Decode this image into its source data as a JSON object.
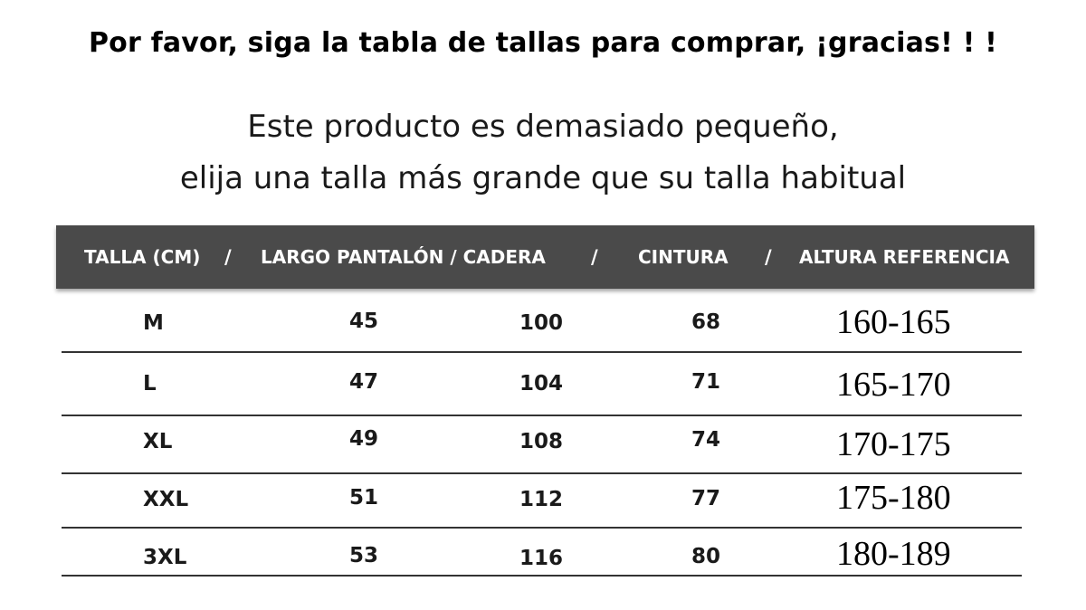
{
  "notice": {
    "headline": "Por favor, siga la tabla de tallas para comprar, ¡gracias! ! !",
    "subline_1": "Este producto es demasiado pequeño,",
    "subline_2": "elija una talla más grande que su talla habitual"
  },
  "table": {
    "headers": {
      "size": "TALLA (CM)",
      "length_hip": "LARGO PANTALÓN / CADERA",
      "waist": "CINTURA",
      "height": "ALTURA REFERENCIA",
      "separator": "/"
    },
    "rows": [
      {
        "size": "M",
        "length": "45",
        "hip": "100",
        "waist": "68",
        "height": "160-165"
      },
      {
        "size": "L",
        "length": "47",
        "hip": "104",
        "waist": "71",
        "height": "165-170"
      },
      {
        "size": "XL",
        "length": "49",
        "hip": "108",
        "waist": "74",
        "height": "170-175"
      },
      {
        "size": "XXL",
        "length": "51",
        "hip": "112",
        "waist": "77",
        "height": "175-180"
      },
      {
        "size": "3XL",
        "length": "53",
        "hip": "116",
        "waist": "80",
        "height": "180-189"
      }
    ]
  },
  "colors": {
    "header_bg": "#4a4a4a",
    "header_text": "#ffffff",
    "row_divider": "#333333"
  }
}
